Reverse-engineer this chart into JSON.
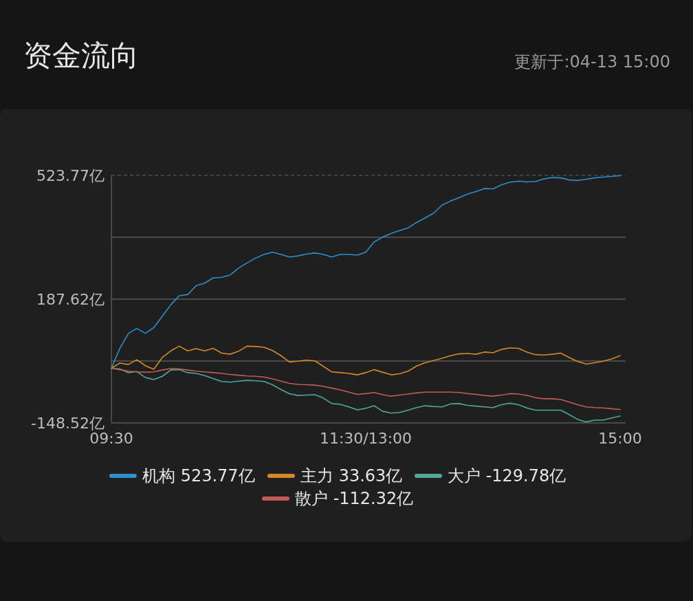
{
  "chart_data": {
    "type": "line",
    "title": "资金流向",
    "subtitle": "更新于:04-13 15:00",
    "categories": [
      "09:30",
      null,
      null,
      null,
      null,
      null,
      null,
      null,
      null,
      null,
      null,
      null,
      null,
      null,
      null,
      null,
      null,
      null,
      null,
      null,
      null,
      null,
      null,
      null,
      null,
      null,
      null,
      null,
      null,
      null,
      "11:30/13:00",
      null,
      null,
      null,
      null,
      null,
      null,
      null,
      null,
      null,
      null,
      null,
      null,
      null,
      null,
      null,
      null,
      null,
      null,
      null,
      null,
      null,
      null,
      null,
      null,
      null,
      null,
      null,
      null,
      null,
      "15:00"
    ],
    "ylim": [
      -148.52,
      523.77
    ],
    "yticks": [
      {
        "value": -148.52,
        "label": "-148.52亿"
      },
      {
        "value": 19.545,
        "label": null
      },
      {
        "value": 187.62,
        "label": "187.62亿"
      },
      {
        "value": 355.695,
        "label": null
      },
      {
        "value": 523.77,
        "label": "523.77亿"
      }
    ],
    "grid": "y",
    "legend": "bottom",
    "marker": "none",
    "line_style": "solid",
    "series": [
      {
        "name": "机构 523.77亿",
        "color": "#2d8fd0",
        "values": [
          0,
          54,
          94,
          108,
          95,
          110,
          141,
          172,
          197,
          200,
          224,
          231,
          245,
          247,
          253,
          272,
          286,
          299,
          309,
          315,
          309,
          302,
          305,
          310,
          313,
          309,
          302,
          309,
          309,
          307,
          315,
          343,
          356,
          366,
          374,
          381,
          396,
          408,
          421,
          443,
          454,
          463,
          473,
          480,
          488,
          487,
          498,
          505,
          508,
          506,
          507,
          514,
          518,
          517,
          511,
          510,
          513,
          517,
          519,
          521,
          523
        ]
      },
      {
        "name": "主力 33.63亿",
        "color": "#d4882a",
        "values": [
          0,
          14,
          10,
          23,
          7,
          -3,
          29,
          47,
          60,
          47,
          53,
          47,
          54,
          41,
          38,
          46,
          60,
          59,
          57,
          48,
          34,
          17,
          19,
          22,
          20,
          5,
          -10,
          -12,
          -14,
          -18,
          -12,
          -4,
          -11,
          -18,
          -15,
          -8,
          6,
          15,
          21,
          27,
          34,
          39,
          40,
          38,
          44,
          42,
          51,
          55,
          54,
          44,
          37,
          36,
          38,
          41,
          29,
          18,
          11,
          15,
          19,
          25,
          34
        ]
      },
      {
        "name": "大户 -129.78亿",
        "color": "#4fa89a",
        "values": [
          0,
          -2,
          -12,
          -9,
          -25,
          -31,
          -22,
          -5,
          -4,
          -12,
          -14,
          -20,
          -28,
          -36,
          -38,
          -35,
          -33,
          -34,
          -36,
          -45,
          -58,
          -69,
          -74,
          -73,
          -72,
          -81,
          -96,
          -98,
          -105,
          -113,
          -109,
          -102,
          -117,
          -122,
          -120,
          -114,
          -107,
          -102,
          -104,
          -105,
          -97,
          -96,
          -101,
          -103,
          -105,
          -107,
          -99,
          -95,
          -99,
          -108,
          -114,
          -114,
          -114,
          -114,
          -126,
          -139,
          -146,
          -141,
          -141,
          -135,
          -130
        ]
      },
      {
        "name": "散户 -112.32亿",
        "color": "#c25a5a",
        "values": [
          0,
          -4,
          -8,
          -10,
          -11,
          -10,
          -5,
          -1,
          -2,
          -5,
          -8,
          -10,
          -12,
          -14,
          -17,
          -19,
          -21,
          -22,
          -24,
          -29,
          -35,
          -41,
          -44,
          -45,
          -46,
          -49,
          -54,
          -59,
          -65,
          -71,
          -69,
          -66,
          -72,
          -76,
          -73,
          -70,
          -67,
          -65,
          -65,
          -65,
          -65,
          -66,
          -69,
          -71,
          -74,
          -76,
          -73,
          -69,
          -70,
          -74,
          -80,
          -83,
          -83,
          -85,
          -92,
          -99,
          -105,
          -107,
          -108,
          -110,
          -112
        ]
      }
    ]
  }
}
